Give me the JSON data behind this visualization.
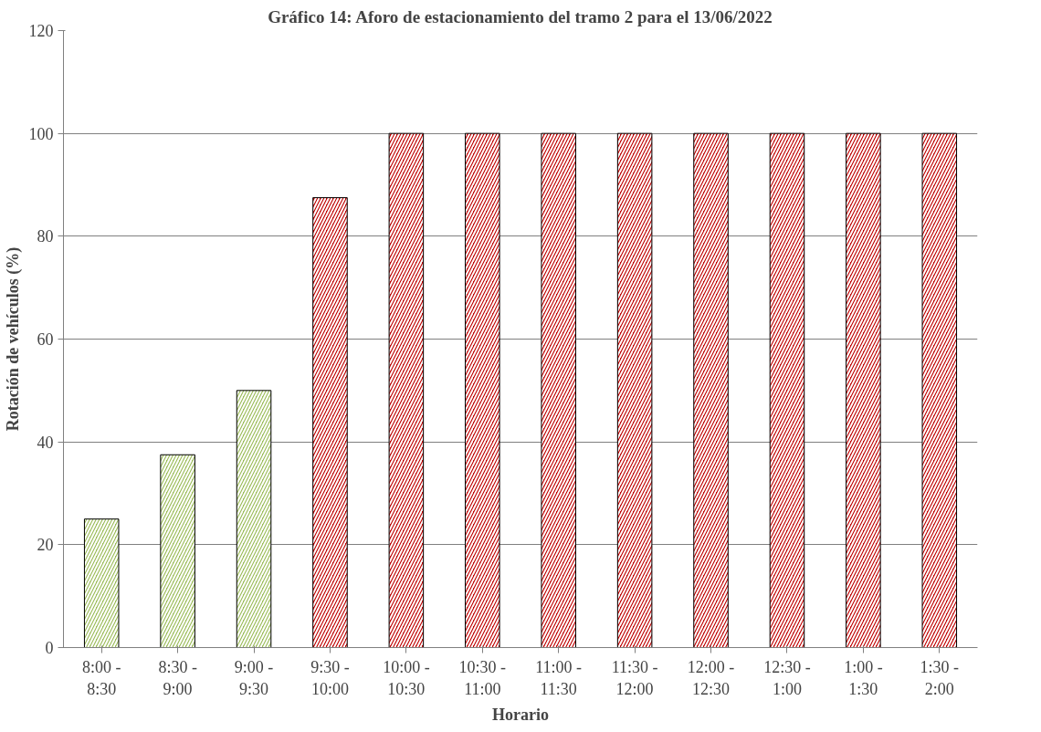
{
  "chart_data": {
    "type": "bar",
    "title": "Gráfico 14: Aforo de estacionamiento del tramo 2 para el 13/06/2022",
    "xlabel": "Horario",
    "ylabel": "Rotación de vehículos (%)",
    "categories": [
      "8:00 - 8:30",
      "8:30 - 9:00",
      "9:00 - 9:30",
      "9:30 - 10:00",
      "10:00 - 10:30",
      "10:30 - 11:00",
      "11:00 - 11:30",
      "11:30 - 12:00",
      "12:00 - 12:30",
      "12:30 - 1:00",
      "1:00 - 1:30",
      "1:30 - 2:00"
    ],
    "values": [
      25,
      37.5,
      50,
      87.5,
      100,
      100,
      100,
      100,
      100,
      100,
      100,
      100
    ],
    "colors": [
      "#9bbb59",
      "#9bbb59",
      "#9bbb59",
      "#c00000",
      "#c00000",
      "#c00000",
      "#c00000",
      "#c00000",
      "#c00000",
      "#c00000",
      "#c00000",
      "#c00000"
    ],
    "ylim": [
      0,
      120
    ],
    "yticks": [
      0,
      20,
      40,
      60,
      80,
      100,
      120
    ],
    "grid": "y"
  }
}
